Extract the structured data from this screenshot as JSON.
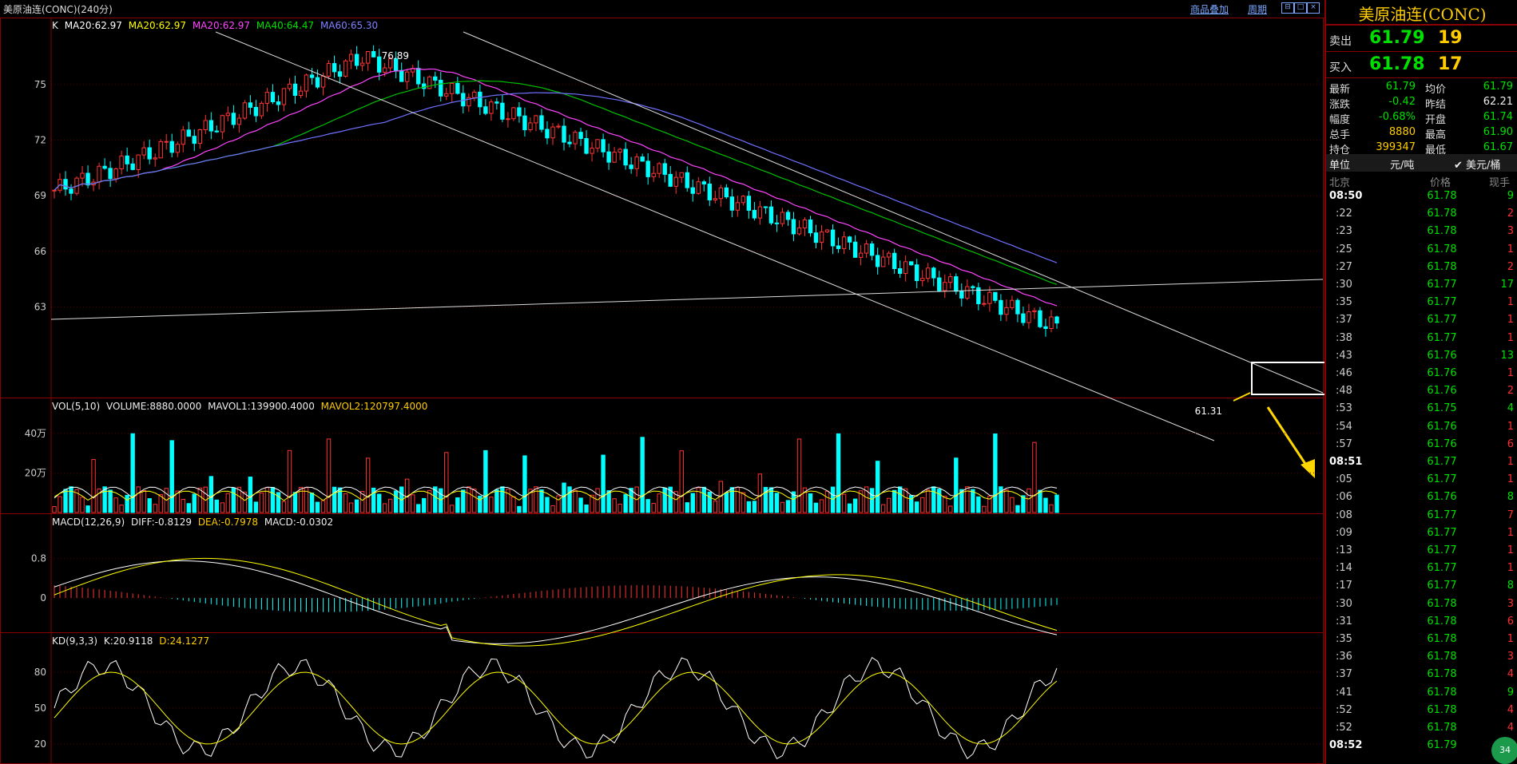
{
  "window": {
    "chart_title": "美原油连(CONC)(240分)",
    "overlay_label": "商品叠加",
    "cycle_label": "周期"
  },
  "main_legend": {
    "k": "K",
    "ma20a": "MA20:62.97",
    "ma20b": "MA20:62.97",
    "ma20c": "MA20:62.97",
    "ma40": "MA40:64.47",
    "ma60": "MA60:65.30"
  },
  "price_axis": [
    "75",
    "72",
    "69",
    "66",
    "63"
  ],
  "annotations": {
    "high": "76.89",
    "low": "61.31"
  },
  "vol_legend": {
    "name": "VOL(5,10)",
    "volume": "VOLUME:8880.0000",
    "mavol1": "MAVOL1:139900.4000",
    "mavol2": "MAVOL2:120797.4000"
  },
  "vol_axis": [
    "40万",
    "20万"
  ],
  "macd_legend": {
    "name": "MACD(12,26,9)",
    "diff": "DIFF:-0.8129",
    "dea": "DEA:-0.7978",
    "macd": "MACD:-0.0302"
  },
  "macd_axis": [
    "0.8",
    "0"
  ],
  "kd_legend": {
    "name": "KD(9,3,3)",
    "k": "K:20.9118",
    "d": "D:24.1277"
  },
  "kd_axis": [
    "80",
    "50",
    "20"
  ],
  "colors": {
    "up": "#ff3333",
    "down": "#00ffff",
    "ma20": "#ff44ff",
    "ma40": "#00c000",
    "ma60": "#7070ff",
    "ma_yellow": "#ffff00",
    "accent": "#ffcc00"
  },
  "quote": {
    "instrument": "美原油连(CONC)",
    "sell_label": "卖出",
    "sell_price": "61.79",
    "sell_vol": "19",
    "buy_label": "买入",
    "buy_price": "61.78",
    "buy_vol": "17",
    "stats": [
      {
        "l1": "最新",
        "v1": "61.79",
        "c1": "green",
        "l2": "均价",
        "v2": "61.79",
        "c2": "green"
      },
      {
        "l1": "涨跌",
        "v1": "-0.42",
        "c1": "green",
        "l2": "昨结",
        "v2": "62.21",
        "c2": "white"
      },
      {
        "l1": "幅度",
        "v1": "-0.68%",
        "c1": "green",
        "l2": "开盘",
        "v2": "61.74",
        "c2": "green"
      },
      {
        "l1": "总手",
        "v1": "8880",
        "c1": "yellow",
        "l2": "最高",
        "v2": "61.90",
        "c2": "green"
      },
      {
        "l1": "持仓",
        "v1": "399347",
        "c1": "yellow",
        "l2": "最低",
        "v2": "61.67",
        "c2": "green"
      }
    ],
    "unit_label": "单位",
    "unit_value": "元/吨",
    "unit_alt": "✔ 美元/桶",
    "tick_headers": [
      "北京",
      "价格",
      "现手"
    ],
    "ticks": [
      {
        "t": "08:50",
        "p": "61.78",
        "v": "9",
        "c": "green",
        "bold": true
      },
      {
        "t": ":22",
        "p": "61.78",
        "v": "2",
        "c": "red"
      },
      {
        "t": ":23",
        "p": "61.78",
        "v": "3",
        "c": "red"
      },
      {
        "t": ":25",
        "p": "61.78",
        "v": "1",
        "c": "red"
      },
      {
        "t": ":27",
        "p": "61.78",
        "v": "2",
        "c": "red"
      },
      {
        "t": ":30",
        "p": "61.77",
        "v": "17",
        "c": "green"
      },
      {
        "t": ":35",
        "p": "61.77",
        "v": "1",
        "c": "red"
      },
      {
        "t": ":37",
        "p": "61.77",
        "v": "1",
        "c": "red"
      },
      {
        "t": ":38",
        "p": "61.77",
        "v": "1",
        "c": "red"
      },
      {
        "t": ":43",
        "p": "61.76",
        "v": "13",
        "c": "green"
      },
      {
        "t": ":46",
        "p": "61.76",
        "v": "1",
        "c": "red"
      },
      {
        "t": ":48",
        "p": "61.76",
        "v": "2",
        "c": "red"
      },
      {
        "t": ":53",
        "p": "61.75",
        "v": "4",
        "c": "green"
      },
      {
        "t": ":54",
        "p": "61.76",
        "v": "1",
        "c": "red"
      },
      {
        "t": ":57",
        "p": "61.76",
        "v": "6",
        "c": "red"
      },
      {
        "t": "08:51",
        "p": "61.77",
        "v": "1",
        "c": "red",
        "bold": true
      },
      {
        "t": ":05",
        "p": "61.77",
        "v": "1",
        "c": "red"
      },
      {
        "t": ":06",
        "p": "61.76",
        "v": "8",
        "c": "green"
      },
      {
        "t": ":08",
        "p": "61.77",
        "v": "7",
        "c": "red"
      },
      {
        "t": ":09",
        "p": "61.77",
        "v": "1",
        "c": "red"
      },
      {
        "t": ":13",
        "p": "61.77",
        "v": "1",
        "c": "red"
      },
      {
        "t": ":14",
        "p": "61.77",
        "v": "1",
        "c": "red"
      },
      {
        "t": ":17",
        "p": "61.77",
        "v": "8",
        "c": "green"
      },
      {
        "t": ":30",
        "p": "61.78",
        "v": "3",
        "c": "red"
      },
      {
        "t": ":31",
        "p": "61.78",
        "v": "6",
        "c": "red"
      },
      {
        "t": ":35",
        "p": "61.78",
        "v": "1",
        "c": "red"
      },
      {
        "t": ":36",
        "p": "61.78",
        "v": "3",
        "c": "red"
      },
      {
        "t": ":37",
        "p": "61.78",
        "v": "4",
        "c": "red"
      },
      {
        "t": ":41",
        "p": "61.78",
        "v": "9",
        "c": "green"
      },
      {
        "t": ":52",
        "p": "61.78",
        "v": "4",
        "c": "red"
      },
      {
        "t": ":52",
        "p": "61.78",
        "v": "4",
        "c": "red"
      },
      {
        "t": "08:52",
        "p": "61.79",
        "v": "",
        "c": "red",
        "bold": true
      }
    ],
    "badge": "34"
  }
}
